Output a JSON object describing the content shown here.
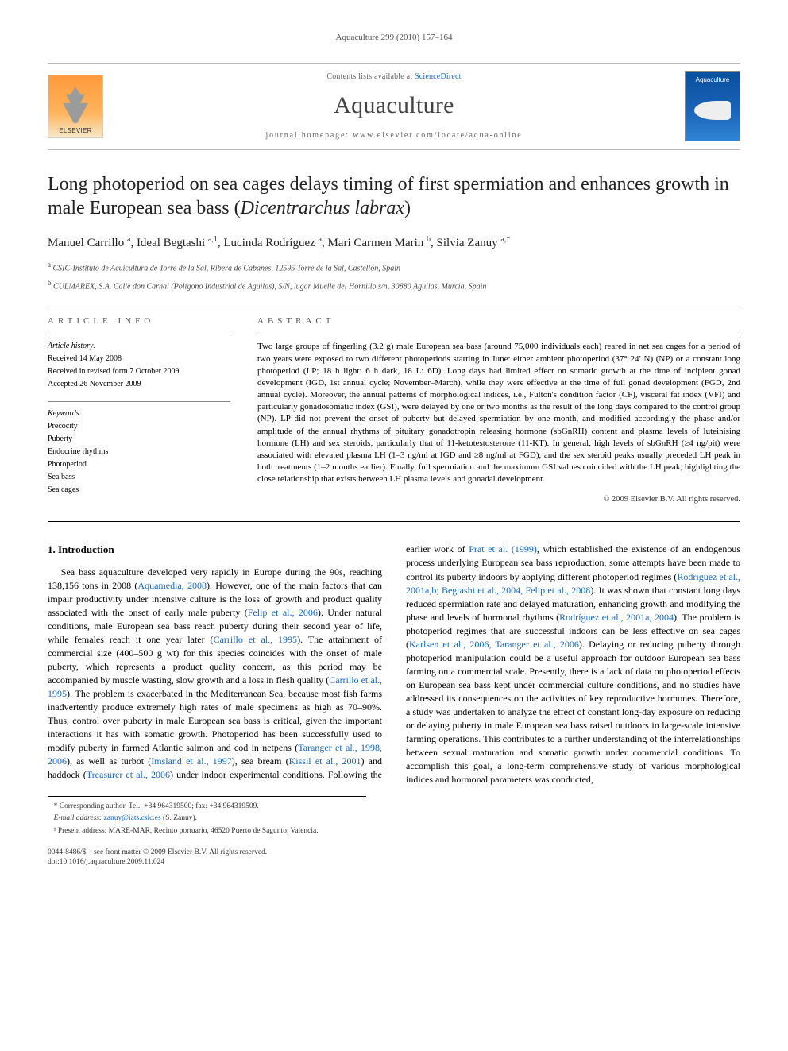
{
  "running_head": "Aquaculture 299 (2010) 157–164",
  "banner": {
    "contents_prefix": "Contents lists available at ",
    "contents_link": "ScienceDirect",
    "journal": "Aquaculture",
    "homepage_prefix": "journal homepage: ",
    "homepage_url": "www.elsevier.com/locate/aqua-online",
    "publisher_logo_text": "ELSEVIER",
    "cover_label": "Aquaculture"
  },
  "title_main": "Long photoperiod on sea cages delays timing of first spermiation and enhances growth in male European sea bass (",
  "title_species": "Dicentrarchus labrax",
  "title_tail": ")",
  "authors": [
    {
      "name": "Manuel Carrillo",
      "marks": "a"
    },
    {
      "name": "Ideal Begtashi",
      "marks": "a,1"
    },
    {
      "name": "Lucinda Rodríguez",
      "marks": "a"
    },
    {
      "name": "Mari Carmen Marin",
      "marks": "b"
    },
    {
      "name": "Silvia Zanuy",
      "marks": "a,*"
    }
  ],
  "affiliations": [
    {
      "mark": "a",
      "text": "CSIC-Instituto de Acuicultura de Torre de la Sal, Ribera de Cabanes, 12595 Torre de la Sal, Castellón, Spain"
    },
    {
      "mark": "b",
      "text": "CULMAREX, S.A. Calle don Carnal (Polígono Industrial de Aguilas), S/N, lugar Muelle del Hornillo s/n, 30880 Aguilas, Murcia, Spain"
    }
  ],
  "article_info_heading": "article info",
  "abstract_heading": "abstract",
  "history_heading": "Article history:",
  "history": [
    "Received 14 May 2008",
    "Received in revised form 7 October 2009",
    "Accepted 26 November 2009"
  ],
  "keywords_heading": "Keywords:",
  "keywords": [
    "Precocity",
    "Puberty",
    "Endocrine rhythms",
    "Photoperiod",
    "Sea bass",
    "Sea cages"
  ],
  "abstract_text": "Two large groups of fingerling (3.2 g) male European sea bass (around 75,000 individuals each) reared in net sea cages for a period of two years were exposed to two different photoperiods starting in June: either ambient photoperiod (37° 24′ N) (NP) or a constant long photoperiod (LP; 18 h light: 6 h dark, 18 L: 6D). Long days had limited effect on somatic growth at the time of incipient gonad development (IGD, 1st annual cycle; November–March), while they were effective at the time of full gonad development (FGD, 2nd annual cycle). Moreover, the annual patterns of morphological indices, i.e., Fulton's condition factor (CF), visceral fat index (VFI) and particularly gonadosomatic index (GSI), were delayed by one or two months as the result of the long days compared to the control group (NP). LP did not prevent the onset of puberty but delayed spermiation by one month, and modified accordingly the phase and/or amplitude of the annual rhythms of pituitary gonadotropin releasing hormone (sbGnRH) content and plasma levels of luteinising hormone (LH) and sex steroids, particularly that of 11-ketotestosterone (11-KT). In general, high levels of sbGnRH (≥4 ng/pit) were associated with elevated plasma LH (1–3 ng/ml at IGD and ≥8 ng/ml at FGD), and the sex steroid peaks usually preceded LH peak in both treatments (1–2 months earlier). Finally, full spermiation and the maximum GSI values coincided with the LH peak, highlighting the close relationship that exists between LH plasma levels and gonadal development.",
  "copyright": "© 2009 Elsevier B.V. All rights reserved.",
  "intro_heading": "1. Introduction",
  "intro_para_1a": "Sea bass aquaculture developed very rapidly in Europe during the 90s, reaching 138,156 tons in 2008 (",
  "intro_ref1": "Aquamedia, 2008",
  "intro_para_1b": "). However, one of the main factors that can impair productivity under intensive culture is the loss of growth and product quality associated with the onset of early male puberty (",
  "intro_ref2": "Felip et al., 2006",
  "intro_para_1c": "). Under natural conditions, male European sea bass reach puberty during their second year of life, while females reach it one year later (",
  "intro_ref3": "Carrillo et al., 1995",
  "intro_para_1d": "). The attainment of commercial size (400–500 g wt) for this species coincides with the onset of male puberty, which represents a product quality concern, as this period may be accompanied by muscle wasting, slow growth and a loss in flesh quality (",
  "intro_ref4": "Carrillo et al., 1995",
  "intro_para_1e": "). The problem is exacerbated in the Mediterranean Sea, because most fish farms inadvertently produce extremely high rates of male specimens as high as 70–90%. Thus, control over puberty in male European sea bass is critical, given the important interactions it has with somatic growth. Photoperiod has been successfully used to modify puberty in farmed Atlantic salmon and cod in netpens (",
  "intro_ref5": "Taranger et al., 1998, 2006",
  "intro_para_1f": "), as well as turbot (",
  "intro_ref6": "Imsland et al., 1997",
  "intro_para_1g": "), ",
  "intro_para_2a": "sea bream (",
  "intro_ref7": "Kissil et al., 2001",
  "intro_para_2b": ") and haddock (",
  "intro_ref8": "Treasurer et al., 2006",
  "intro_para_2c": ") under indoor experimental conditions. Following the earlier work of ",
  "intro_ref9": "Prat et al. (1999)",
  "intro_para_2d": ", which established the existence of an endogenous process underlying European sea bass reproduction, some attempts have been made to control its puberty indoors by applying different photoperiod regimes (",
  "intro_ref10": "Rodríguez et al., 2001a,b; Begtashi et al., 2004, Felip et al., 2008",
  "intro_para_2e": "). It was shown that constant long days reduced spermiation rate and delayed maturation, enhancing growth and modifying the phase and levels of hormonal rhythms (",
  "intro_ref11": "Rodríguez et al., 2001a, 2004",
  "intro_para_2f": "). The problem is photoperiod regimes that are successful indoors can be less effective on sea cages (",
  "intro_ref12": "Karlsen et al., 2006, Taranger et al., 2006",
  "intro_para_2g": "). Delaying or reducing puberty through photoperiod manipulation could be a useful approach for outdoor European sea bass farming on a commercial scale. Presently, there is a lack of data on photoperiod effects on European sea bass kept under commercial culture conditions, and no studies have addressed its consequences on the activities of key reproductive hormones. Therefore, a study was undertaken to analyze the effect of constant long-day exposure on reducing or delaying puberty in male European sea bass raised outdoors in large-scale intensive farming operations. This contributes to a further understanding of the interrelationships between sexual maturation and somatic growth under commercial conditions. To accomplish this goal, a long-term comprehensive study of various morphological indices and hormonal parameters was conducted,",
  "footnote_corr": "* Corresponding author. Tel.: +34 964319500; fax: +34 964319509.",
  "footnote_email_label": "E-mail address: ",
  "footnote_email": "zanuy@iats.csic.es",
  "footnote_email_tail": " (S. Zanuy).",
  "footnote_present": "¹ Present address: MARE-MAR, Recinto portuario, 46520 Puerto de Sagunto, Valencia.",
  "doi_line1": "0044-8486/$ – see front matter © 2009 Elsevier B.V. All rights reserved.",
  "doi_line2": "doi:10.1016/j.aquaculture.2009.11.024"
}
